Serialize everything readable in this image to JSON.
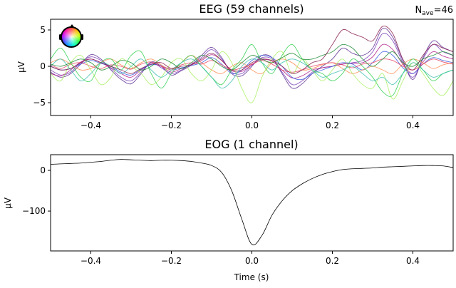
{
  "chart_data": [
    {
      "type": "line",
      "title": "EEG (59 channels)",
      "annotation": "N",
      "annotation_sub": "ave",
      "annotation_value": "=46",
      "xlabel": "",
      "ylabel": "µV",
      "xlim": [
        -0.5,
        0.5
      ],
      "ylim": [
        -6.76,
        6.47
      ],
      "xticks": [
        "−0.4",
        "−0.2",
        "0.0",
        "0.2",
        "0.4"
      ],
      "xtick_values": [
        -0.4,
        -0.2,
        0.0,
        0.2,
        0.4
      ],
      "yticks": [
        "5",
        "0",
        "−5"
      ],
      "ytick_values": [
        5,
        0,
        -5
      ],
      "grid": false,
      "legend": "sensor-topomap inset top-left",
      "t_start": -0.5,
      "t_step": 0.025,
      "series": [
        {
          "color": "#7a3db8",
          "values": [
            -0.5,
            -1.2,
            -0.8,
            0.5,
            1.3,
            0.8,
            -0.3,
            -1.5,
            -2.0,
            -0.8,
            0.5,
            -0.2,
            -1.0,
            -0.5,
            0.3,
            1.2,
            2.3,
            1.0,
            -0.8,
            -1.0,
            0.2,
            1.2,
            1.0,
            -0.8,
            -2.5,
            -2.0,
            -0.8,
            -0.2,
            0.0,
            0.3,
            0.5,
            0.8,
            2.0,
            4.5,
            3.5,
            0.5,
            -1.5,
            1.0,
            3.0,
            2.0,
            1.5
          ]
        },
        {
          "color": "#5a2a90",
          "values": [
            -0.8,
            -1.5,
            -1,
            0.3,
            1.6,
            1,
            -0.5,
            -1.8,
            -2.4,
            -1,
            0.6,
            0,
            -1.2,
            -0.6,
            0.2,
            1.5,
            2.6,
            1.2,
            -1,
            -1.3,
            0,
            1.5,
            1.2,
            -1,
            -3.0,
            -2.4,
            -1,
            0,
            1,
            2.5,
            1.8,
            1.5,
            2.5,
            5.2,
            4,
            0.8,
            -1.8,
            1.2,
            3.5,
            2.6,
            2
          ]
        },
        {
          "color": "#b0208a",
          "values": [
            -1,
            -1.3,
            -0.5,
            0.6,
            1,
            0.5,
            -0.2,
            -1,
            -1.5,
            -0.5,
            0.3,
            0,
            -0.8,
            -0.3,
            0.2,
            0.8,
            1.6,
            0.8,
            -0.6,
            -0.7,
            0.2,
            0.9,
            0.7,
            -0.5,
            -1.6,
            -1.3,
            -0.5,
            -0.2,
            0,
            0.3,
            0.4,
            0.5,
            1.3,
            3,
            2.3,
            0.3,
            -1,
            0.6,
            2,
            1.4,
            1
          ]
        },
        {
          "color": "#3a5ae0",
          "values": [
            0,
            -0.5,
            -0.3,
            0.3,
            0.8,
            0.4,
            0,
            -0.8,
            -1.2,
            -0.4,
            0.2,
            0.1,
            -0.5,
            -0.2,
            0.1,
            0.5,
            1.2,
            0.3,
            -1,
            -0.5,
            0.8,
            1.5,
            1.2,
            0,
            -1.5,
            -1.8,
            -1,
            -0.5,
            0,
            0.5,
            0.3,
            -0.5,
            0.5,
            2,
            1.5,
            -0.2,
            -1,
            0.3,
            1.2,
            0.8,
            0.5
          ]
        },
        {
          "color": "#ff8c50",
          "values": [
            0.5,
            1,
            0.3,
            -0.5,
            -0.3,
            0.5,
            1,
            0.2,
            -0.3,
            0.5,
            1,
            0.2,
            -0.5,
            0.5,
            1.5,
            0.5,
            -0.5,
            -1,
            0,
            0.5,
            -0.5,
            -1,
            0.5,
            1,
            0.5,
            -0.5,
            -0.3,
            0.2,
            0.5,
            -0.3,
            -1,
            -0.5,
            0,
            -0.5,
            -1,
            0.3,
            1,
            0.5,
            -0.3,
            0.2,
            0.5
          ]
        },
        {
          "color": "#e84060",
          "values": [
            0.2,
            -0.3,
            0.3,
            0.5,
            0,
            -0.3,
            0.2,
            0,
            -0.4,
            0.3,
            0.6,
            0,
            -0.3,
            0.2,
            0.5,
            0.3,
            0.8,
            0.2,
            -0.5,
            -0.2,
            0.3,
            0.8,
            0.3,
            -0.5,
            -0.8,
            -0.5,
            0,
            0.3,
            0.5,
            0.2,
            -0.2,
            0.3,
            0.5,
            1,
            0.8,
            0,
            -0.5,
            0.3,
            1,
            0.6,
            0.3
          ]
        },
        {
          "color": "#30d050",
          "values": [
            1,
            2.5,
            0.5,
            -1.5,
            -2,
            0.5,
            1,
            -0.5,
            1.5,
            2,
            -1,
            -3,
            -1,
            0.5,
            1.5,
            0,
            -1.5,
            -2.5,
            -0.5,
            1,
            3,
            0.5,
            -1,
            1.5,
            3,
            1,
            -0.5,
            -1,
            -2,
            -1,
            1,
            0,
            -1.5,
            -3.5,
            -4,
            -1,
            1,
            -0.5,
            -2,
            -1,
            -0.5
          ]
        },
        {
          "color": "#a8f060",
          "values": [
            -1,
            -2,
            0.5,
            1.5,
            -0.5,
            -2.5,
            -1.5,
            1,
            0,
            -1,
            -2.5,
            -1.5,
            0.5,
            1,
            -1,
            -2,
            -0.5,
            2,
            0.5,
            -3,
            -5,
            -1.5,
            1,
            2,
            -1,
            1,
            -0.5,
            -2,
            -0.5,
            1,
            -1,
            -2.5,
            -3,
            -1,
            -4.5,
            -2,
            0.5,
            -1,
            -3,
            -4,
            -2
          ]
        },
        {
          "color": "#40c0b0",
          "values": [
            0,
            1,
            -0.5,
            -2,
            -1,
            0.5,
            0,
            -1,
            0,
            1,
            -0.5,
            -1.5,
            -0.5,
            0.5,
            1,
            0,
            -1.5,
            -3,
            -2,
            0,
            1,
            0.5,
            -0.5,
            0.5,
            1,
            0.5,
            -0.5,
            -1.5,
            -1,
            -0.5,
            0,
            -1,
            -2,
            -1.5,
            -2.5,
            -1,
            0.5,
            -0.5,
            -1.5,
            -1,
            -0.5
          ]
        },
        {
          "color": "#1a8a30",
          "values": [
            0.3,
            0,
            0.5,
            1,
            0.5,
            -0.5,
            0,
            0.8,
            0.5,
            -0.5,
            0,
            1,
            0.5,
            -0.3,
            0.5,
            1.5,
            1,
            0,
            -0.5,
            0.5,
            1.5,
            1,
            0.5,
            1.2,
            1.8,
            1,
            1,
            1.5,
            2,
            3,
            2.5,
            1,
            0,
            1,
            2,
            0.5,
            0,
            1,
            1.5,
            2,
            1.5
          ]
        },
        {
          "color": "#8a2050",
          "values": [
            0,
            -0.5,
            -0.3,
            0.5,
            1,
            0.5,
            0,
            -0.5,
            -1,
            -0.3,
            0.3,
            0.5,
            -0.3,
            0,
            0.2,
            1,
            1.8,
            0.8,
            -0.5,
            -0.5,
            0.5,
            1,
            0.8,
            0,
            -1,
            -0.5,
            0.5,
            1,
            3,
            5,
            4.5,
            4,
            3.5,
            5.5,
            4.5,
            1,
            -0.5,
            1.5,
            3,
            2.5,
            2
          ]
        }
      ]
    },
    {
      "type": "line",
      "title": "EOG (1 channel)",
      "xlabel": "Time (s)",
      "ylabel": "µV",
      "xlim": [
        -0.5,
        0.5
      ],
      "ylim": [
        -198,
        38.6
      ],
      "xticks": [
        "−0.4",
        "−0.2",
        "0.0",
        "0.2",
        "0.4"
      ],
      "xtick_values": [
        -0.4,
        -0.2,
        0.0,
        0.2,
        0.4
      ],
      "yticks": [
        "0",
        "−100"
      ],
      "ytick_values": [
        0,
        -100
      ],
      "grid": false,
      "t_start": -0.5,
      "t_step": 0.025,
      "series": [
        {
          "color": "#000000",
          "values": [
            15,
            16,
            17,
            18,
            20,
            22,
            25,
            27,
            26,
            25,
            24,
            25,
            25,
            24,
            22,
            18,
            12,
            -5,
            -50,
            -120,
            -182,
            -160,
            -110,
            -75,
            -50,
            -33,
            -20,
            -10,
            -3,
            2,
            4,
            5,
            6,
            8,
            9,
            10,
            11,
            12,
            12,
            11,
            7
          ]
        }
      ]
    }
  ]
}
